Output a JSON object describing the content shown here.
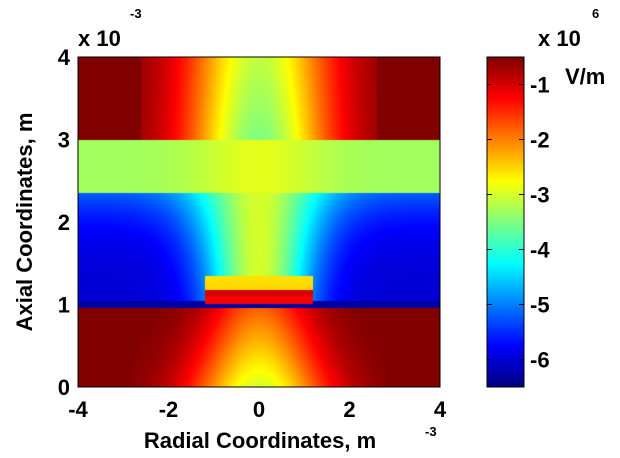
{
  "chart_data": {
    "type": "heatmap",
    "title": "",
    "xlabel": "Radial Coordinates, m",
    "ylabel": "Axial Coordinates, m",
    "xlim": [
      -4,
      4
    ],
    "ylim": [
      0,
      4
    ],
    "x_ticks": [
      "-4",
      "-2",
      "0",
      "2",
      "4"
    ],
    "y_ticks": [
      "0",
      "1",
      "2",
      "3",
      "4"
    ],
    "x_exponent": "-3",
    "y_exponent_prefix": "x 10",
    "y_exponent": "-3",
    "colorbar": {
      "multiplier_prefix": "x 10",
      "multiplier_exponent": "6",
      "unit": "V/m",
      "range": [
        -6.5,
        -0.5
      ],
      "ticks": [
        "-1",
        "-2",
        "-3",
        "-4",
        "-5",
        "-6"
      ],
      "colormap": "jet"
    },
    "regions": [
      {
        "name": "top band",
        "y_range": [
          3,
          4
        ],
        "field_min": -3.5,
        "field_max": -0.5
      },
      {
        "name": "upper layer",
        "y_range": [
          2.35,
          3
        ],
        "field_min": -3.3,
        "field_max": -2.9
      },
      {
        "name": "middle layer",
        "y_range": [
          1,
          2.35
        ],
        "field_min": -6.0,
        "field_max": -3.0
      },
      {
        "name": "bottom band",
        "y_range": [
          0,
          1
        ],
        "field_min": -3.0,
        "field_max": -0.5
      }
    ],
    "electrode": {
      "x_range": [
        -1.2,
        1.2
      ],
      "y": 1.05
    }
  }
}
